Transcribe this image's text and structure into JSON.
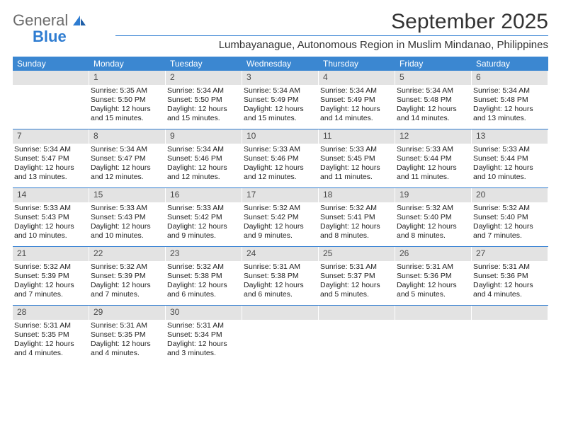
{
  "brand": {
    "name1": "General",
    "name2": "Blue"
  },
  "title": "September 2025",
  "location": "Lumbayanague, Autonomous Region in Muslim Mindanao, Philippines",
  "colors": {
    "header_bg": "#3b87d1",
    "accent": "#2e7cd1",
    "daynum_bg": "#e3e3e3",
    "text": "#222222",
    "logo_gray": "#6b6b6b"
  },
  "days_of_week": [
    "Sunday",
    "Monday",
    "Tuesday",
    "Wednesday",
    "Thursday",
    "Friday",
    "Saturday"
  ],
  "weeks": [
    [
      {
        "day": null
      },
      {
        "day": "1",
        "sunrise": "Sunrise: 5:35 AM",
        "sunset": "Sunset: 5:50 PM",
        "daylight": "Daylight: 12 hours and 15 minutes."
      },
      {
        "day": "2",
        "sunrise": "Sunrise: 5:34 AM",
        "sunset": "Sunset: 5:50 PM",
        "daylight": "Daylight: 12 hours and 15 minutes."
      },
      {
        "day": "3",
        "sunrise": "Sunrise: 5:34 AM",
        "sunset": "Sunset: 5:49 PM",
        "daylight": "Daylight: 12 hours and 15 minutes."
      },
      {
        "day": "4",
        "sunrise": "Sunrise: 5:34 AM",
        "sunset": "Sunset: 5:49 PM",
        "daylight": "Daylight: 12 hours and 14 minutes."
      },
      {
        "day": "5",
        "sunrise": "Sunrise: 5:34 AM",
        "sunset": "Sunset: 5:48 PM",
        "daylight": "Daylight: 12 hours and 14 minutes."
      },
      {
        "day": "6",
        "sunrise": "Sunrise: 5:34 AM",
        "sunset": "Sunset: 5:48 PM",
        "daylight": "Daylight: 12 hours and 13 minutes."
      }
    ],
    [
      {
        "day": "7",
        "sunrise": "Sunrise: 5:34 AM",
        "sunset": "Sunset: 5:47 PM",
        "daylight": "Daylight: 12 hours and 13 minutes."
      },
      {
        "day": "8",
        "sunrise": "Sunrise: 5:34 AM",
        "sunset": "Sunset: 5:47 PM",
        "daylight": "Daylight: 12 hours and 12 minutes."
      },
      {
        "day": "9",
        "sunrise": "Sunrise: 5:34 AM",
        "sunset": "Sunset: 5:46 PM",
        "daylight": "Daylight: 12 hours and 12 minutes."
      },
      {
        "day": "10",
        "sunrise": "Sunrise: 5:33 AM",
        "sunset": "Sunset: 5:46 PM",
        "daylight": "Daylight: 12 hours and 12 minutes."
      },
      {
        "day": "11",
        "sunrise": "Sunrise: 5:33 AM",
        "sunset": "Sunset: 5:45 PM",
        "daylight": "Daylight: 12 hours and 11 minutes."
      },
      {
        "day": "12",
        "sunrise": "Sunrise: 5:33 AM",
        "sunset": "Sunset: 5:44 PM",
        "daylight": "Daylight: 12 hours and 11 minutes."
      },
      {
        "day": "13",
        "sunrise": "Sunrise: 5:33 AM",
        "sunset": "Sunset: 5:44 PM",
        "daylight": "Daylight: 12 hours and 10 minutes."
      }
    ],
    [
      {
        "day": "14",
        "sunrise": "Sunrise: 5:33 AM",
        "sunset": "Sunset: 5:43 PM",
        "daylight": "Daylight: 12 hours and 10 minutes."
      },
      {
        "day": "15",
        "sunrise": "Sunrise: 5:33 AM",
        "sunset": "Sunset: 5:43 PM",
        "daylight": "Daylight: 12 hours and 10 minutes."
      },
      {
        "day": "16",
        "sunrise": "Sunrise: 5:33 AM",
        "sunset": "Sunset: 5:42 PM",
        "daylight": "Daylight: 12 hours and 9 minutes."
      },
      {
        "day": "17",
        "sunrise": "Sunrise: 5:32 AM",
        "sunset": "Sunset: 5:42 PM",
        "daylight": "Daylight: 12 hours and 9 minutes."
      },
      {
        "day": "18",
        "sunrise": "Sunrise: 5:32 AM",
        "sunset": "Sunset: 5:41 PM",
        "daylight": "Daylight: 12 hours and 8 minutes."
      },
      {
        "day": "19",
        "sunrise": "Sunrise: 5:32 AM",
        "sunset": "Sunset: 5:40 PM",
        "daylight": "Daylight: 12 hours and 8 minutes."
      },
      {
        "day": "20",
        "sunrise": "Sunrise: 5:32 AM",
        "sunset": "Sunset: 5:40 PM",
        "daylight": "Daylight: 12 hours and 7 minutes."
      }
    ],
    [
      {
        "day": "21",
        "sunrise": "Sunrise: 5:32 AM",
        "sunset": "Sunset: 5:39 PM",
        "daylight": "Daylight: 12 hours and 7 minutes."
      },
      {
        "day": "22",
        "sunrise": "Sunrise: 5:32 AM",
        "sunset": "Sunset: 5:39 PM",
        "daylight": "Daylight: 12 hours and 7 minutes."
      },
      {
        "day": "23",
        "sunrise": "Sunrise: 5:32 AM",
        "sunset": "Sunset: 5:38 PM",
        "daylight": "Daylight: 12 hours and 6 minutes."
      },
      {
        "day": "24",
        "sunrise": "Sunrise: 5:31 AM",
        "sunset": "Sunset: 5:38 PM",
        "daylight": "Daylight: 12 hours and 6 minutes."
      },
      {
        "day": "25",
        "sunrise": "Sunrise: 5:31 AM",
        "sunset": "Sunset: 5:37 PM",
        "daylight": "Daylight: 12 hours and 5 minutes."
      },
      {
        "day": "26",
        "sunrise": "Sunrise: 5:31 AM",
        "sunset": "Sunset: 5:36 PM",
        "daylight": "Daylight: 12 hours and 5 minutes."
      },
      {
        "day": "27",
        "sunrise": "Sunrise: 5:31 AM",
        "sunset": "Sunset: 5:36 PM",
        "daylight": "Daylight: 12 hours and 4 minutes."
      }
    ],
    [
      {
        "day": "28",
        "sunrise": "Sunrise: 5:31 AM",
        "sunset": "Sunset: 5:35 PM",
        "daylight": "Daylight: 12 hours and 4 minutes."
      },
      {
        "day": "29",
        "sunrise": "Sunrise: 5:31 AM",
        "sunset": "Sunset: 5:35 PM",
        "daylight": "Daylight: 12 hours and 4 minutes."
      },
      {
        "day": "30",
        "sunrise": "Sunrise: 5:31 AM",
        "sunset": "Sunset: 5:34 PM",
        "daylight": "Daylight: 12 hours and 3 minutes."
      },
      {
        "day": null
      },
      {
        "day": null
      },
      {
        "day": null
      },
      {
        "day": null
      }
    ]
  ]
}
